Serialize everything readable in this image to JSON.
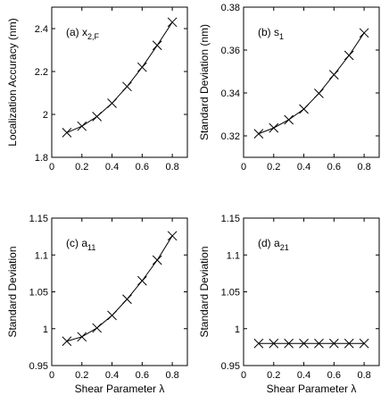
{
  "chart_data": [
    {
      "type": "line",
      "panel_label": "(a) x",
      "panel_label_sub": "2,F",
      "ylabel": "Localization Accuracy (nm)",
      "xlabel": "",
      "xlim": [
        0,
        0.9
      ],
      "ylim": [
        1.8,
        2.5
      ],
      "xticks": [
        0,
        0.2,
        0.4,
        0.6,
        0.8
      ],
      "xtick_labels": [
        "0",
        "0.2",
        "0.4",
        "0.6",
        "0.8"
      ],
      "yticks": [
        1.8,
        2.0,
        2.2,
        2.4
      ],
      "ytick_labels": [
        "1.8",
        "2",
        "2.2",
        "2.4"
      ],
      "x": [
        0.1,
        0.2,
        0.3,
        0.4,
        0.5,
        0.6,
        0.7,
        0.8
      ],
      "y": [
        1.915,
        1.945,
        1.99,
        2.052,
        2.13,
        2.22,
        2.322,
        2.43
      ],
      "marker": "x",
      "grid": false
    },
    {
      "type": "line",
      "panel_label": "(b) s",
      "panel_label_sub": "1",
      "ylabel": "Standard Deviation (nm)",
      "xlabel": "",
      "xlim": [
        0,
        0.9
      ],
      "ylim": [
        0.31,
        0.38
      ],
      "xticks": [
        0,
        0.2,
        0.4,
        0.6,
        0.8
      ],
      "xtick_labels": [
        "0",
        "0.2",
        "0.4",
        "0.6",
        "0.8"
      ],
      "yticks": [
        0.32,
        0.34,
        0.36,
        0.38
      ],
      "ytick_labels": [
        "0.32",
        "0.34",
        "0.36",
        "0.38"
      ],
      "x": [
        0.1,
        0.2,
        0.3,
        0.4,
        0.5,
        0.6,
        0.7,
        0.8
      ],
      "y": [
        0.321,
        0.3237,
        0.3275,
        0.3325,
        0.3398,
        0.3485,
        0.3575,
        0.368
      ],
      "marker": "x",
      "grid": false
    },
    {
      "type": "line",
      "panel_label": "(c) a",
      "panel_label_sub": "11",
      "ylabel": "Standard Deviation",
      "xlabel": "Shear Parameter λ",
      "xlim": [
        0,
        0.9
      ],
      "ylim": [
        0.95,
        1.15
      ],
      "xticks": [
        0,
        0.2,
        0.4,
        0.6,
        0.8
      ],
      "xtick_labels": [
        "0",
        "0.2",
        "0.4",
        "0.6",
        "0.8"
      ],
      "yticks": [
        0.95,
        1.0,
        1.05,
        1.1,
        1.15
      ],
      "ytick_labels": [
        "0.95",
        "1",
        "1.05",
        "1.1",
        "1.15"
      ],
      "x": [
        0.1,
        0.2,
        0.3,
        0.4,
        0.5,
        0.6,
        0.7,
        0.8
      ],
      "y": [
        0.983,
        0.989,
        1.001,
        1.018,
        1.04,
        1.065,
        1.093,
        1.126
      ],
      "marker": "x",
      "grid": false
    },
    {
      "type": "line",
      "panel_label": "(d) a",
      "panel_label_sub": "21",
      "ylabel": "Standard Deviation",
      "xlabel": "Shear Parameter λ",
      "xlim": [
        0,
        0.9
      ],
      "ylim": [
        0.95,
        1.15
      ],
      "xticks": [
        0,
        0.2,
        0.4,
        0.6,
        0.8
      ],
      "xtick_labels": [
        "0",
        "0.2",
        "0.4",
        "0.6",
        "0.8"
      ],
      "yticks": [
        0.95,
        1.0,
        1.05,
        1.1,
        1.15
      ],
      "ytick_labels": [
        "0.95",
        "1",
        "1.05",
        "1.1",
        "1.15"
      ],
      "x": [
        0.1,
        0.2,
        0.3,
        0.4,
        0.5,
        0.6,
        0.7,
        0.8
      ],
      "y": [
        0.98,
        0.98,
        0.98,
        0.98,
        0.98,
        0.98,
        0.98,
        0.98
      ],
      "marker": "x",
      "grid": false
    }
  ]
}
